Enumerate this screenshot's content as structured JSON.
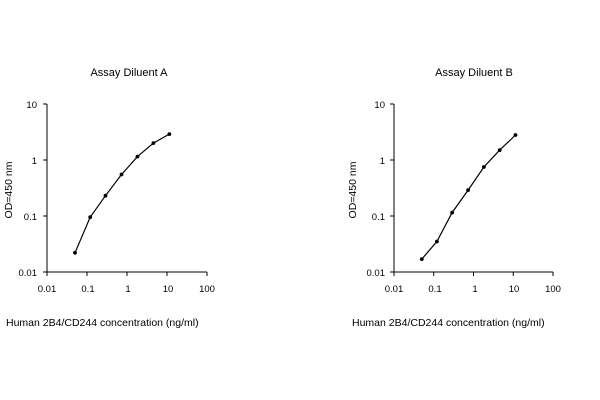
{
  "chart_data": [
    {
      "type": "line",
      "title": "Assay Diluent A",
      "xlabel": "Human 2B4/CD244 concentration (ng/ml)",
      "ylabel": "OD=450 nm",
      "xscale": "log",
      "yscale": "log",
      "xlim": [
        0.01,
        100
      ],
      "ylim": [
        0.01,
        10
      ],
      "xticks": [
        "0.01",
        "0.1",
        "1",
        "10",
        "100"
      ],
      "yticks": [
        "0.01",
        "0.1",
        "1",
        "10"
      ],
      "grid": false,
      "series": [
        {
          "x": [
            0.05,
            0.12,
            0.29,
            0.73,
            1.83,
            4.57,
            11.4
          ],
          "y": [
            0.022,
            0.095,
            0.23,
            0.55,
            1.15,
            2.0,
            2.9
          ]
        }
      ]
    },
    {
      "type": "line",
      "title": "Assay Diluent B",
      "xlabel": "Human 2B4/CD244 concentration (ng/ml)",
      "ylabel": "OD=450 nm",
      "xscale": "log",
      "yscale": "log",
      "xlim": [
        0.01,
        100
      ],
      "ylim": [
        0.01,
        10
      ],
      "xticks": [
        "0.01",
        "0.1",
        "1",
        "10",
        "100"
      ],
      "yticks": [
        "0.01",
        "0.1",
        "1",
        "10"
      ],
      "grid": false,
      "series": [
        {
          "x": [
            0.05,
            0.12,
            0.29,
            0.73,
            1.83,
            4.57,
            11.4
          ],
          "y": [
            0.017,
            0.035,
            0.115,
            0.29,
            0.75,
            1.5,
            2.8
          ]
        }
      ]
    }
  ]
}
